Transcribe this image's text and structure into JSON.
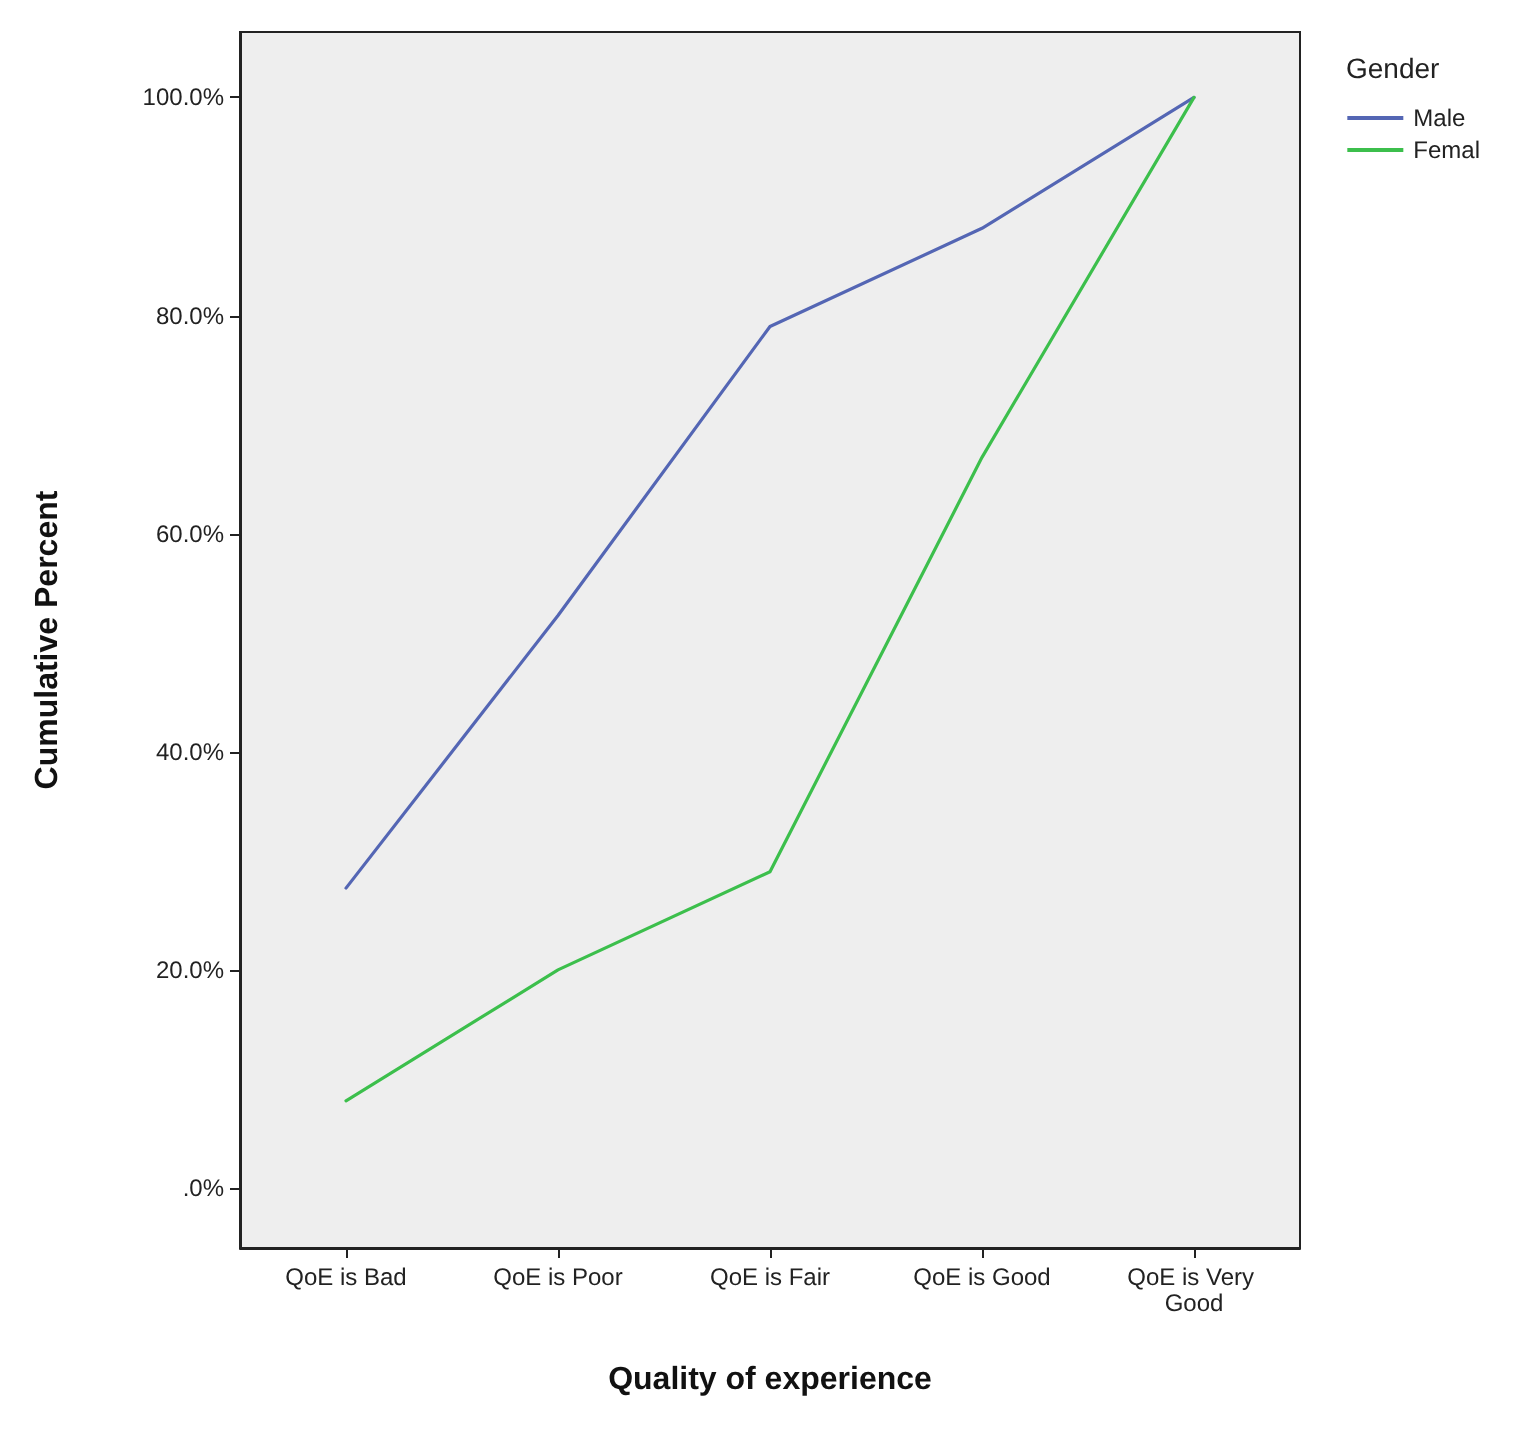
{
  "chart_data": {
    "type": "line",
    "xlabel": "Quality of experience",
    "ylabel": "Cumulative Percent",
    "legend_title": "Gender",
    "legend": "right",
    "grid": false,
    "marker": "none",
    "line_style": "solid",
    "categories": [
      "QoE is Bad",
      "QoE is Poor",
      "QoE is Fair",
      "QoE is Good",
      "QoE is Very Good"
    ],
    "ylim": [
      -5.5,
      106
    ],
    "yticks": [
      {
        "value": 0,
        "label": ".0%"
      },
      {
        "value": 20,
        "label": "20.0%"
      },
      {
        "value": 40,
        "label": "40.0%"
      },
      {
        "value": 60,
        "label": "60.0%"
      },
      {
        "value": 80,
        "label": "80.0%"
      },
      {
        "value": 100,
        "label": "100.0%"
      }
    ],
    "series": [
      {
        "name": "Male",
        "color": "#5466b4",
        "values": [
          27.5,
          52.5,
          79,
          88,
          100
        ]
      },
      {
        "name": "Femal",
        "color": "#3cbf4c",
        "values": [
          8,
          20,
          29,
          67,
          100
        ]
      }
    ]
  }
}
